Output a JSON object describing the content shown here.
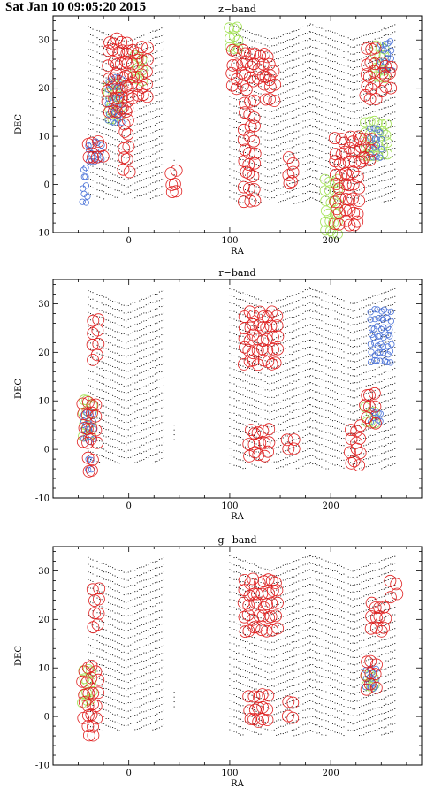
{
  "timestamp": "Sat Jan 10 09:05:20 2015",
  "colors": {
    "scan": "#000000",
    "red": "#e02020",
    "blue": "#4a72d8",
    "green": "#a6e35a"
  },
  "chart_data": [
    {
      "type": "scatter",
      "title": "z−band",
      "xlabel": "RA",
      "ylabel": "DEC",
      "xlim": [
        -75,
        290
      ],
      "ylim": [
        -10,
        35
      ],
      "xticks": [
        0,
        100,
        200
      ],
      "yticks": [
        -10,
        0,
        10,
        20,
        30
      ],
      "red_blocks": [
        {
          "ra": [
            -20,
            0
          ],
          "dec": [
            15,
            30
          ]
        },
        {
          "ra": [
            0,
            20
          ],
          "dec": [
            18,
            29
          ]
        },
        {
          "ra": [
            -40,
            -25
          ],
          "dec": [
            6,
            10
          ]
        },
        {
          "ra": [
            -5,
            2
          ],
          "dec": [
            3,
            16
          ]
        },
        {
          "ra": [
            42,
            48
          ],
          "dec": [
            -2,
            4
          ]
        },
        {
          "ra": [
            103,
            120
          ],
          "dec": [
            20,
            29
          ]
        },
        {
          "ra": [
            120,
            140
          ],
          "dec": [
            22,
            29
          ]
        },
        {
          "ra": [
            135,
            145
          ],
          "dec": [
            18,
            24
          ]
        },
        {
          "ra": [
            115,
            125
          ],
          "dec": [
            -3,
            18
          ]
        },
        {
          "ra": [
            158,
            163
          ],
          "dec": [
            0,
            5
          ]
        },
        {
          "ra": [
            205,
            230
          ],
          "dec": [
            -8,
            11
          ]
        },
        {
          "ra": [
            230,
            240
          ],
          "dec": [
            5,
            11
          ]
        },
        {
          "ra": [
            235,
            245
          ],
          "dec": [
            18,
            30
          ]
        },
        {
          "ra": [
            250,
            260
          ],
          "dec": [
            20,
            27
          ]
        }
      ],
      "blue_blocks": [
        {
          "ra": [
            -20,
            -5
          ],
          "dec": [
            13,
            22
          ]
        },
        {
          "ra": [
            -40,
            -25
          ],
          "dec": [
            5,
            9
          ]
        },
        {
          "ra": [
            -45,
            -40
          ],
          "dec": [
            -4,
            4
          ]
        },
        {
          "ra": [
            240,
            250
          ],
          "dec": [
            6,
            12
          ]
        },
        {
          "ra": [
            250,
            262
          ],
          "dec": [
            24,
            30
          ]
        }
      ],
      "green_blocks": [
        {
          "ra": [
            -20,
            -5
          ],
          "dec": [
            14,
            22
          ]
        },
        {
          "ra": [
            5,
            15
          ],
          "dec": [
            22,
            27
          ]
        },
        {
          "ra": [
            100,
            110
          ],
          "dec": [
            28,
            33
          ]
        },
        {
          "ra": [
            195,
            210
          ],
          "dec": [
            -10,
            2
          ]
        },
        {
          "ra": [
            235,
            255
          ],
          "dec": [
            6,
            14
          ]
        },
        {
          "ra": [
            245,
            255
          ],
          "dec": [
            22,
            30
          ]
        }
      ]
    },
    {
      "type": "scatter",
      "title": "r−band",
      "xlabel": "RA",
      "ylabel": "DEC",
      "xlim": [
        -75,
        290
      ],
      "ylim": [
        -10,
        35
      ],
      "xticks": [
        0,
        100,
        200
      ],
      "yticks": [
        -10,
        0,
        10,
        20,
        30
      ],
      "red_blocks": [
        {
          "ra": [
            -35,
            -30
          ],
          "dec": [
            19,
            28
          ]
        },
        {
          "ra": [
            -45,
            -30
          ],
          "dec": [
            2,
            11
          ]
        },
        {
          "ra": [
            -40,
            -32
          ],
          "dec": [
            -4,
            -1
          ]
        },
        {
          "ra": [
            115,
            150
          ],
          "dec": [
            18,
            30
          ]
        },
        {
          "ra": [
            120,
            140
          ],
          "dec": [
            -1,
            6
          ]
        },
        {
          "ra": [
            158,
            163
          ],
          "dec": [
            0,
            4
          ]
        },
        {
          "ra": [
            220,
            230
          ],
          "dec": [
            -3,
            5
          ]
        },
        {
          "ra": [
            235,
            245
          ],
          "dec": [
            6,
            11
          ]
        }
      ],
      "blue_blocks": [
        {
          "ra": [
            -45,
            -35
          ],
          "dec": [
            2,
            9
          ]
        },
        {
          "ra": [
            -40,
            -34
          ],
          "dec": [
            -4,
            -2
          ]
        },
        {
          "ra": [
            240,
            260
          ],
          "dec": [
            18,
            30
          ]
        },
        {
          "ra": [
            240,
            250
          ],
          "dec": [
            6,
            9
          ]
        }
      ],
      "green_blocks": [
        {
          "ra": [
            -45,
            -35
          ],
          "dec": [
            3,
            10
          ]
        },
        {
          "ra": [
            235,
            245
          ],
          "dec": [
            6,
            10
          ]
        }
      ]
    },
    {
      "type": "scatter",
      "title": "g−band",
      "xlabel": "RA",
      "ylabel": "DEC",
      "xlim": [
        -75,
        290
      ],
      "ylim": [
        -10,
        35
      ],
      "xticks": [
        0,
        100,
        200
      ],
      "yticks": [
        -10,
        0,
        10,
        20,
        30
      ],
      "red_blocks": [
        {
          "ra": [
            -35,
            -30
          ],
          "dec": [
            19,
            28
          ]
        },
        {
          "ra": [
            -45,
            -30
          ],
          "dec": [
            0,
            11
          ]
        },
        {
          "ra": [
            -40,
            -32
          ],
          "dec": [
            -4,
            -1
          ]
        },
        {
          "ra": [
            115,
            150
          ],
          "dec": [
            18,
            30
          ]
        },
        {
          "ra": [
            120,
            140
          ],
          "dec": [
            -1,
            5
          ]
        },
        {
          "ra": [
            158,
            163
          ],
          "dec": [
            0,
            4
          ]
        },
        {
          "ra": [
            240,
            255
          ],
          "dec": [
            18,
            24
          ]
        },
        {
          "ra": [
            260,
            265
          ],
          "dec": [
            25,
            28
          ]
        },
        {
          "ra": [
            235,
            245
          ],
          "dec": [
            6,
            11
          ]
        }
      ],
      "blue_blocks": [
        {
          "ra": [
            235,
            245
          ],
          "dec": [
            6,
            10
          ]
        }
      ],
      "green_blocks": [
        {
          "ra": [
            -45,
            -35
          ],
          "dec": [
            3,
            11
          ]
        },
        {
          "ra": [
            235,
            245
          ],
          "dec": [
            6,
            10
          ]
        }
      ]
    }
  ]
}
